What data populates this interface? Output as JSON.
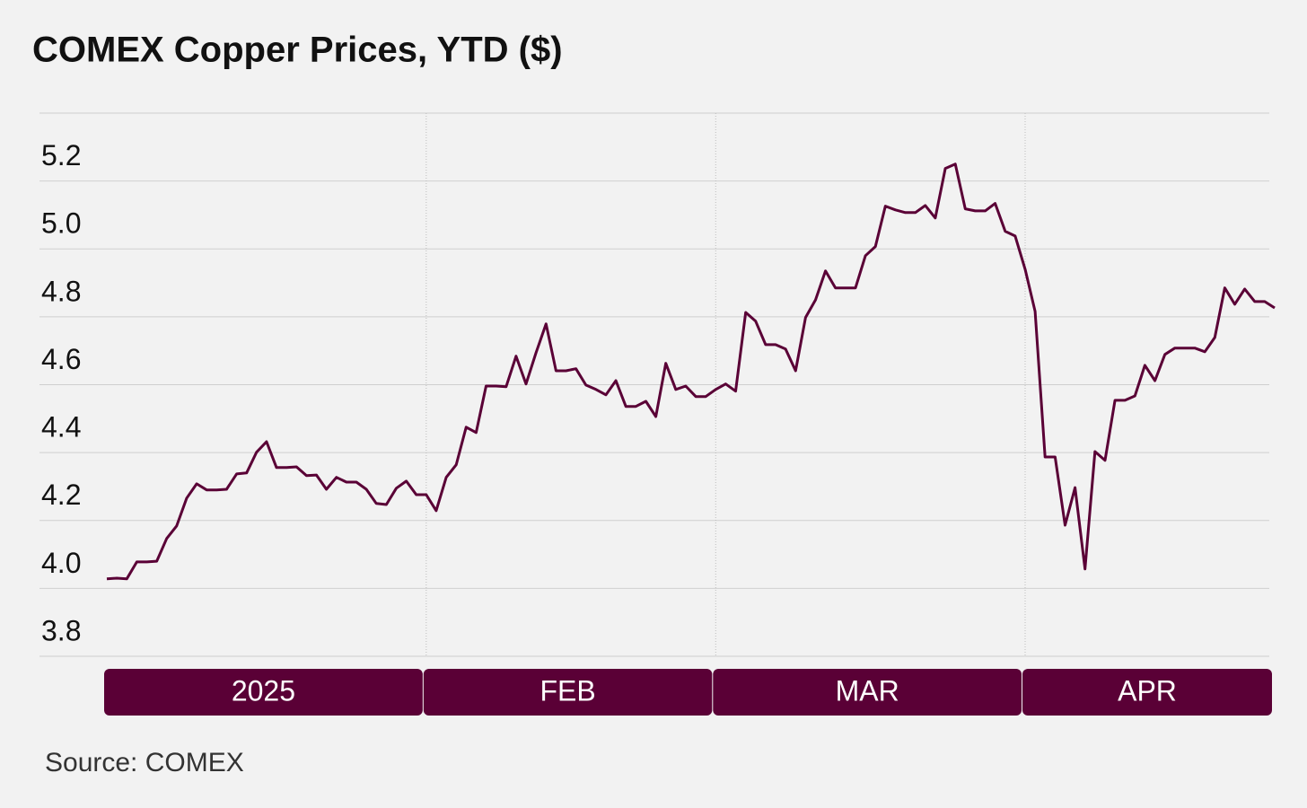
{
  "chart_data": {
    "type": "line",
    "title": "COMEX Copper Prices, YTD ($)",
    "source": "Source: COMEX",
    "color": "#5a0036",
    "ylim": [
      3.8,
      5.4
    ],
    "yticks": [
      3.8,
      4.0,
      4.2,
      4.4,
      4.6,
      4.8,
      5.0,
      5.2
    ],
    "ytick_labels": [
      "3.8",
      "4.0",
      "4.2",
      "4.4",
      "4.6",
      "4.8",
      "5.0",
      "5.2"
    ],
    "grid": true,
    "categories": [
      "2025",
      null,
      null,
      null,
      null,
      null,
      null,
      null,
      null,
      null,
      null,
      null,
      null,
      null,
      null,
      null,
      null,
      null,
      null,
      null,
      null,
      null,
      null,
      null,
      null,
      null,
      null,
      null,
      null,
      null,
      null,
      null,
      "FEB",
      null,
      null,
      null,
      null,
      null,
      null,
      null,
      null,
      null,
      null,
      null,
      null,
      null,
      null,
      null,
      null,
      null,
      null,
      null,
      null,
      null,
      null,
      null,
      null,
      null,
      null,
      null,
      null,
      "MAR",
      null,
      null,
      null,
      null,
      null,
      null,
      null,
      null,
      null,
      null,
      null,
      null,
      null,
      null,
      null,
      null,
      null,
      null,
      null,
      null,
      null,
      null,
      null,
      null,
      null,
      null,
      null,
      null,
      null,
      null,
      "APR",
      null,
      null,
      null,
      null,
      null,
      null,
      null,
      null,
      null,
      null,
      null,
      null,
      null,
      null,
      null,
      null,
      null,
      null,
      null,
      null,
      null,
      null,
      null,
      null,
      null
    ],
    "values": [
      4.028,
      4.03,
      4.028,
      4.078,
      4.078,
      4.08,
      4.147,
      4.184,
      4.266,
      4.308,
      4.29,
      4.29,
      4.292,
      4.337,
      4.34,
      4.401,
      4.432,
      4.356,
      4.356,
      4.358,
      4.332,
      4.334,
      4.292,
      4.327,
      4.313,
      4.313,
      4.292,
      4.25,
      4.247,
      4.295,
      4.316,
      4.276,
      4.276,
      4.229,
      4.327,
      4.364,
      4.475,
      4.459,
      4.596,
      4.596,
      4.594,
      4.684,
      4.602,
      4.694,
      4.779,
      4.641,
      4.641,
      4.647,
      4.599,
      4.586,
      4.57,
      4.612,
      4.536,
      4.536,
      4.551,
      4.506,
      4.663,
      4.586,
      4.596,
      4.565,
      4.565,
      4.586,
      4.602,
      4.581,
      4.813,
      4.787,
      4.718,
      4.718,
      4.705,
      4.641,
      4.798,
      4.85,
      4.935,
      4.885,
      4.885,
      4.885,
      4.98,
      5.007,
      5.126,
      5.115,
      5.107,
      5.107,
      5.128,
      5.091,
      5.237,
      5.25,
      5.118,
      5.112,
      5.112,
      5.134,
      5.052,
      5.038,
      4.94,
      4.816,
      4.387,
      4.387,
      4.186,
      4.297,
      4.057,
      4.403,
      4.377,
      4.554,
      4.554,
      4.567,
      4.657,
      4.612,
      4.689,
      4.708,
      4.708,
      4.708,
      4.697,
      4.739,
      4.885,
      4.837,
      4.882,
      4.845,
      4.845,
      4.826
    ]
  }
}
